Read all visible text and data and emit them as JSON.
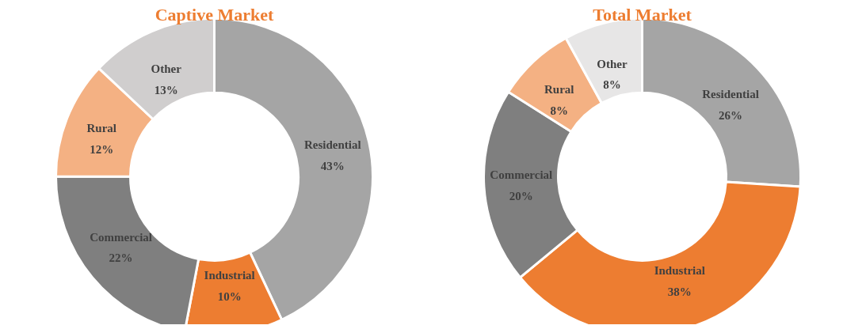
{
  "chart_data": [
    {
      "type": "donut",
      "title": "Captive Market",
      "categories": [
        "Residential",
        "Industrial",
        "Commercial",
        "Rural",
        "Other"
      ],
      "values": [
        43,
        10,
        22,
        12,
        13
      ],
      "value_labels": [
        "43%",
        "10%",
        "22%",
        "12%",
        "13%"
      ],
      "colors": [
        "#a5a5a5",
        "#ed7d31",
        "#7f7f7f",
        "#f4b183",
        "#d0cece"
      ]
    },
    {
      "type": "donut",
      "title": "Total Market",
      "categories": [
        "Residential",
        "Industrial",
        "Commercial",
        "Rural",
        "Other"
      ],
      "values": [
        26,
        38,
        20,
        8,
        8
      ],
      "value_labels": [
        "26%",
        "38%",
        "20%",
        "8%",
        "8%"
      ],
      "colors": [
        "#a5a5a5",
        "#ed7d31",
        "#7f7f7f",
        "#f4b183",
        "#e7e6e6"
      ]
    }
  ]
}
